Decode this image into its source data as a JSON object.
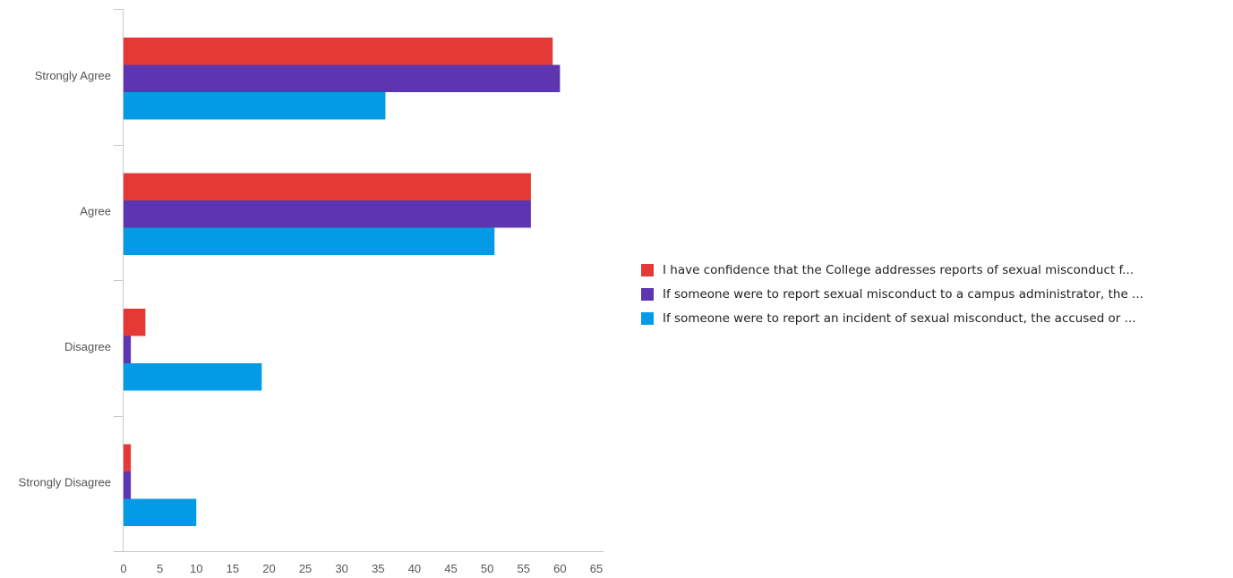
{
  "chart_data": {
    "type": "bar",
    "orientation": "horizontal",
    "categories": [
      "Strongly Agree",
      "Agree",
      "Disagree",
      "Strongly Disagree"
    ],
    "series": [
      {
        "name": "I have confidence that the College addresses reports of sexual misconduct f...",
        "color": "#e53935",
        "values": [
          59,
          56,
          3,
          1
        ]
      },
      {
        "name": "If someone were to report sexual misconduct to a campus administrator, the ...",
        "color": "#5e35b1",
        "values": [
          60,
          56,
          1,
          1
        ]
      },
      {
        "name": "If someone were to report an incident of sexual misconduct, the accused or ...",
        "color": "#039be5",
        "values": [
          36,
          51,
          19,
          10
        ]
      }
    ],
    "xticks": [
      "0",
      "5",
      "10",
      "15",
      "20",
      "25",
      "30",
      "35",
      "40",
      "45",
      "50",
      "55",
      "60",
      "65"
    ],
    "xlim": [
      0,
      65
    ],
    "legend_position": "right",
    "grid": false
  }
}
